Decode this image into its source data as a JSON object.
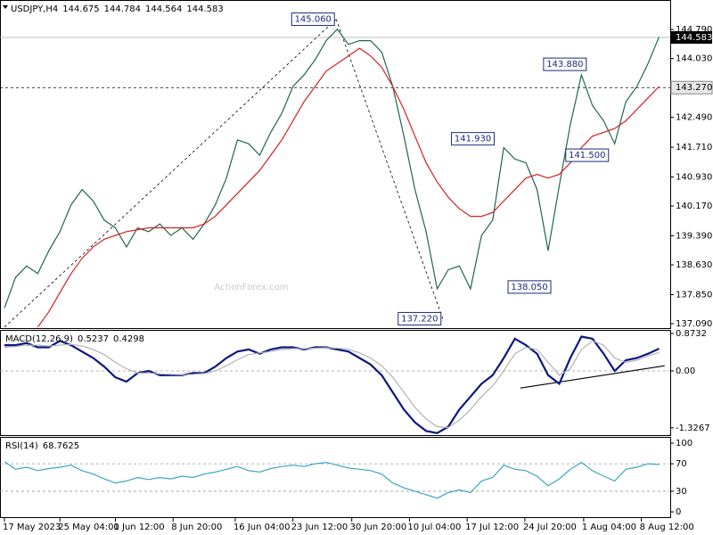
{
  "chart_data": [
    {
      "type": "line",
      "symbol": "USDJPY,H4",
      "ohlc": [
        144.675,
        144.784,
        144.564,
        144.583
      ],
      "watermark": "ActionForex.com",
      "xlim": [
        -0.4,
        60
      ],
      "ylim": [
        136.95,
        145.54
      ],
      "xticks": [
        {
          "value": 0,
          "label": "17 May 2023"
        },
        {
          "value": 5,
          "label": "25 May 04:00"
        },
        {
          "value": 10,
          "label": "1 Jun 12:00"
        },
        {
          "value": 15.2,
          "label": "8 Jun 20:00"
        },
        {
          "value": 20.8,
          "label": "16 Jun 04:00"
        },
        {
          "value": 26,
          "label": "23 Jun 12:00"
        },
        {
          "value": 31.3,
          "label": "30 Jun 20:00"
        },
        {
          "value": 36.5,
          "label": "10 Jul 04:00"
        },
        {
          "value": 41.7,
          "label": "17 Jul 12:00"
        },
        {
          "value": 46.9,
          "label": "24 Jul 20:00"
        },
        {
          "value": 52.2,
          "label": "1 Aug 04:00"
        },
        {
          "value": 57.4,
          "label": "8 Aug 12:00"
        }
      ],
      "yticks": [
        {
          "value": 137.09,
          "label": "137.090"
        },
        {
          "value": 137.85,
          "label": "137.850"
        },
        {
          "value": 138.63,
          "label": "138.630"
        },
        {
          "value": 139.39,
          "label": "139.390"
        },
        {
          "value": 140.17,
          "label": "140.170"
        },
        {
          "value": 140.93,
          "label": "140.930"
        },
        {
          "value": 141.71,
          "label": "141.710"
        },
        {
          "value": 142.49,
          "label": "142.490"
        },
        {
          "value": 144.03,
          "label": "144.030"
        },
        {
          "value": 144.79,
          "label": "144.790"
        }
      ],
      "levels": [
        {
          "value": 143.27,
          "label": "143.270"
        }
      ],
      "last_price": {
        "value": 144.583,
        "label": "144.583"
      },
      "annotations": [
        {
          "value": 145.06,
          "label": "145.060",
          "x": 29.9
        },
        {
          "value": 137.22,
          "label": "137.220",
          "x": 39.5
        },
        {
          "value": 141.93,
          "label": "141.930",
          "x": 44.3
        },
        {
          "value": 138.05,
          "label": "138.050",
          "x": 49.4
        },
        {
          "value": 143.88,
          "label": "143.880",
          "x": 52.6
        },
        {
          "value": 141.5,
          "label": "141.500",
          "x": 54.6
        }
      ],
      "trendline_style": "dashed",
      "trendlines": [
        {
          "x": [
            0,
            29.9
          ],
          "y": [
            137.0,
            145.06
          ]
        },
        {
          "x": [
            29.9,
            39.5
          ],
          "y": [
            145.06,
            137.22
          ]
        }
      ],
      "series": [
        {
          "color": "#1f6650",
          "values": [
            137.5,
            138.3,
            138.6,
            138.4,
            139.0,
            139.5,
            140.2,
            140.6,
            140.3,
            139.8,
            139.6,
            139.1,
            139.6,
            139.5,
            139.7,
            139.4,
            139.6,
            139.3,
            139.7,
            140.2,
            140.9,
            141.9,
            141.8,
            141.5,
            142.1,
            142.6,
            143.3,
            143.6,
            144.0,
            144.5,
            144.8,
            144.4,
            144.5,
            144.5,
            144.2,
            143.3,
            142.0,
            140.6,
            139.5,
            138.0,
            138.5,
            138.6,
            138.0,
            139.4,
            139.8,
            141.7,
            141.4,
            141.3,
            140.6,
            139.0,
            140.7,
            142.3,
            143.6,
            142.8,
            142.4,
            141.8,
            142.9,
            143.3,
            143.9,
            144.6
          ]
        },
        {
          "color": "#d62020",
          "values": [
            null,
            null,
            null,
            137.0,
            137.4,
            137.9,
            138.4,
            138.8,
            139.1,
            139.3,
            139.4,
            139.5,
            139.55,
            139.6,
            139.6,
            139.6,
            139.6,
            139.6,
            139.7,
            139.9,
            140.2,
            140.5,
            140.8,
            141.1,
            141.5,
            141.9,
            142.4,
            142.9,
            143.3,
            143.7,
            143.9,
            144.1,
            144.3,
            144.1,
            143.8,
            143.3,
            142.7,
            142.0,
            141.3,
            140.8,
            140.4,
            140.1,
            139.9,
            139.9,
            140.0,
            140.3,
            140.6,
            140.9,
            141.0,
            140.9,
            141.0,
            141.3,
            141.7,
            142.0,
            142.1,
            142.2,
            142.4,
            142.7,
            143.0,
            143.3
          ]
        }
      ]
    },
    {
      "type": "line",
      "title": "MACD(12,26,9)",
      "readings": [
        0.5237,
        0.4298
      ],
      "ylim": [
        -1.518,
        0.935
      ],
      "yticks": [
        0.8732,
        {
          "value": 0,
          "label": "0.00"
        },
        -1.3267
      ],
      "levels": [
        0
      ],
      "trendline_style": "solid",
      "trendlines": [
        {
          "x": [
            46.5,
            59.5
          ],
          "y": [
            -0.4,
            0.12
          ]
        }
      ],
      "series": [
        {
          "color": "#0c1880",
          "values": [
            0.6,
            0.6,
            0.65,
            0.55,
            0.55,
            0.7,
            0.6,
            0.45,
            0.3,
            0.1,
            -0.15,
            -0.25,
            -0.05,
            0,
            -0.1,
            -0.1,
            -0.1,
            -0.05,
            -0.05,
            0.1,
            0.3,
            0.45,
            0.5,
            0.4,
            0.5,
            0.55,
            0.55,
            0.5,
            0.55,
            0.55,
            0.5,
            0.45,
            0.3,
            0.15,
            -0.1,
            -0.5,
            -0.9,
            -1.2,
            -1.4,
            -1.45,
            -1.3,
            -0.9,
            -0.6,
            -0.3,
            -0.1,
            0.3,
            0.75,
            0.6,
            0.4,
            -0.1,
            -0.3,
            0.3,
            0.8,
            0.75,
            0.4,
            0,
            0.25,
            0.3,
            0.4,
            0.52
          ]
        },
        {
          "color": "#b4b4b4",
          "values": [
            0.55,
            0.57,
            0.6,
            0.6,
            0.58,
            0.6,
            0.62,
            0.58,
            0.5,
            0.38,
            0.2,
            0.05,
            -0.05,
            -0.05,
            -0.07,
            -0.08,
            -0.09,
            -0.08,
            -0.06,
            0,
            0.12,
            0.26,
            0.38,
            0.42,
            0.45,
            0.5,
            0.52,
            0.52,
            0.53,
            0.54,
            0.53,
            0.5,
            0.42,
            0.3,
            0.12,
            -0.15,
            -0.5,
            -0.85,
            -1.12,
            -1.3,
            -1.32,
            -1.15,
            -0.9,
            -0.6,
            -0.35,
            0,
            0.4,
            0.55,
            0.5,
            0.2,
            -0.1,
            0.05,
            0.5,
            0.7,
            0.6,
            0.3,
            0.2,
            0.25,
            0.35,
            0.43
          ]
        }
      ]
    },
    {
      "type": "line",
      "title": "RSI(14)",
      "readings": [
        68.7625
      ],
      "ylim": [
        -9,
        107.8
      ],
      "yticks": [
        100,
        70,
        30,
        0
      ],
      "levels": [
        70,
        30
      ],
      "series": [
        {
          "color": "#3aa6c4",
          "values": [
            73,
            62,
            65,
            60,
            63,
            65,
            68,
            60,
            55,
            48,
            42,
            45,
            50,
            47,
            50,
            48,
            52,
            50,
            55,
            58,
            62,
            66,
            60,
            58,
            63,
            66,
            68,
            66,
            70,
            72,
            68,
            64,
            62,
            60,
            55,
            42,
            35,
            30,
            25,
            20,
            28,
            32,
            28,
            45,
            50,
            68,
            62,
            60,
            52,
            38,
            48,
            62,
            72,
            60,
            52,
            45,
            62,
            65,
            70,
            69
          ]
        }
      ]
    }
  ]
}
